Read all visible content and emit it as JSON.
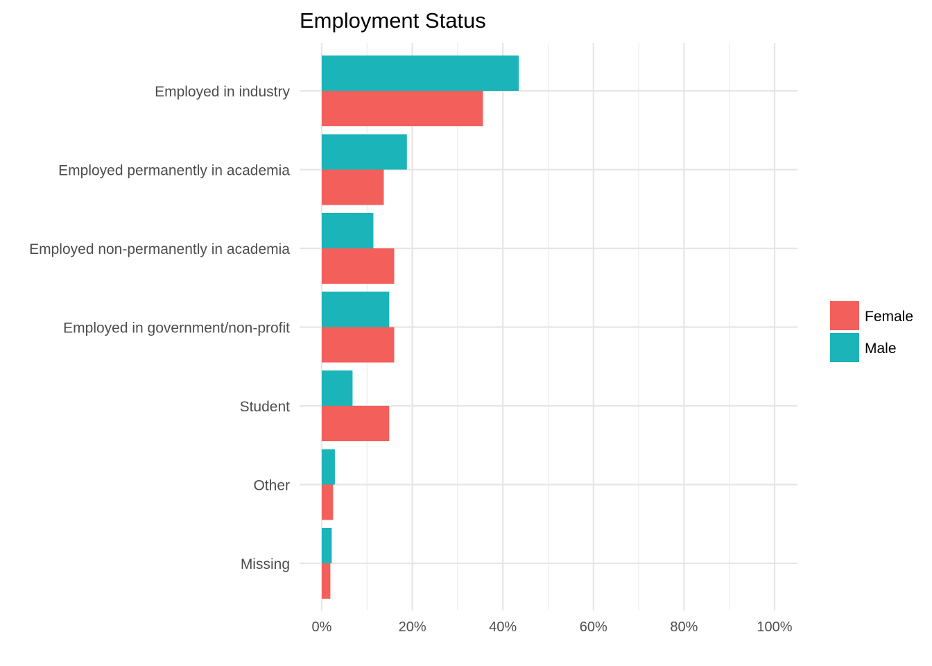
{
  "chart_data": {
    "type": "bar",
    "orientation": "horizontal",
    "title": "Employment Status",
    "xlabel": "",
    "ylabel": "",
    "categories": [
      "Employed in industry",
      "Employed permanently in academia",
      "Employed non-permanently in academia",
      "Employed in government/non-profit",
      "Student",
      "Other",
      "Missing"
    ],
    "series": [
      {
        "name": "Male",
        "color": "#1bb4b8",
        "values": [
          0.435,
          0.188,
          0.114,
          0.149,
          0.068,
          0.029,
          0.022
        ]
      },
      {
        "name": "Female",
        "color": "#f35f5b",
        "values": [
          0.356,
          0.137,
          0.16,
          0.16,
          0.149,
          0.025,
          0.019
        ]
      }
    ],
    "xlim": [
      0,
      1
    ],
    "x_ticks": [
      0,
      0.2,
      0.4,
      0.6,
      0.8,
      1.0
    ],
    "x_tick_labels": [
      "0%",
      "20%",
      "40%",
      "60%",
      "80%",
      "100%"
    ],
    "grid": true,
    "legend": {
      "placement": "right",
      "entries": [
        {
          "name": "Female",
          "color": "#f35f5b"
        },
        {
          "name": "Male",
          "color": "#1bb4b8"
        }
      ]
    }
  }
}
